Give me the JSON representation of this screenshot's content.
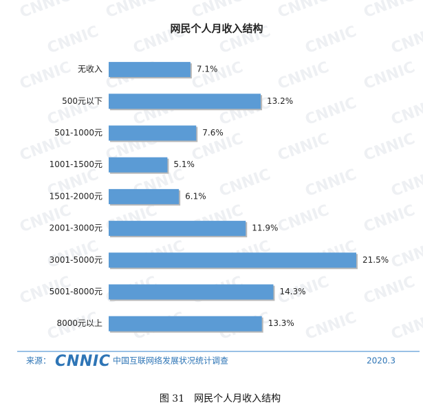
{
  "chart_data": {
    "type": "bar",
    "orientation": "horizontal",
    "title": "网民个人月收入结构",
    "categories": [
      "无收入",
      "500元以下",
      "501-1000元",
      "1001-1500元",
      "1501-2000元",
      "2001-3000元",
      "3001-5000元",
      "5001-8000元",
      "8000元以上"
    ],
    "values": [
      7.1,
      13.2,
      7.6,
      5.1,
      6.1,
      11.9,
      21.5,
      14.3,
      13.3
    ],
    "value_labels": [
      "7.1%",
      "13.2%",
      "7.6%",
      "5.1%",
      "6.1%",
      "11.9%",
      "21.5%",
      "14.3%",
      "13.3%"
    ],
    "color": "#5b9bd5",
    "grid": false
  },
  "watermark": "CNNIC",
  "footer": {
    "source_label": "来源：",
    "logo": "CNNIC",
    "organization": "中国互联网络发展状况统计调查",
    "date": "2020.3"
  },
  "caption": "图 31　网民个人月收入结构"
}
